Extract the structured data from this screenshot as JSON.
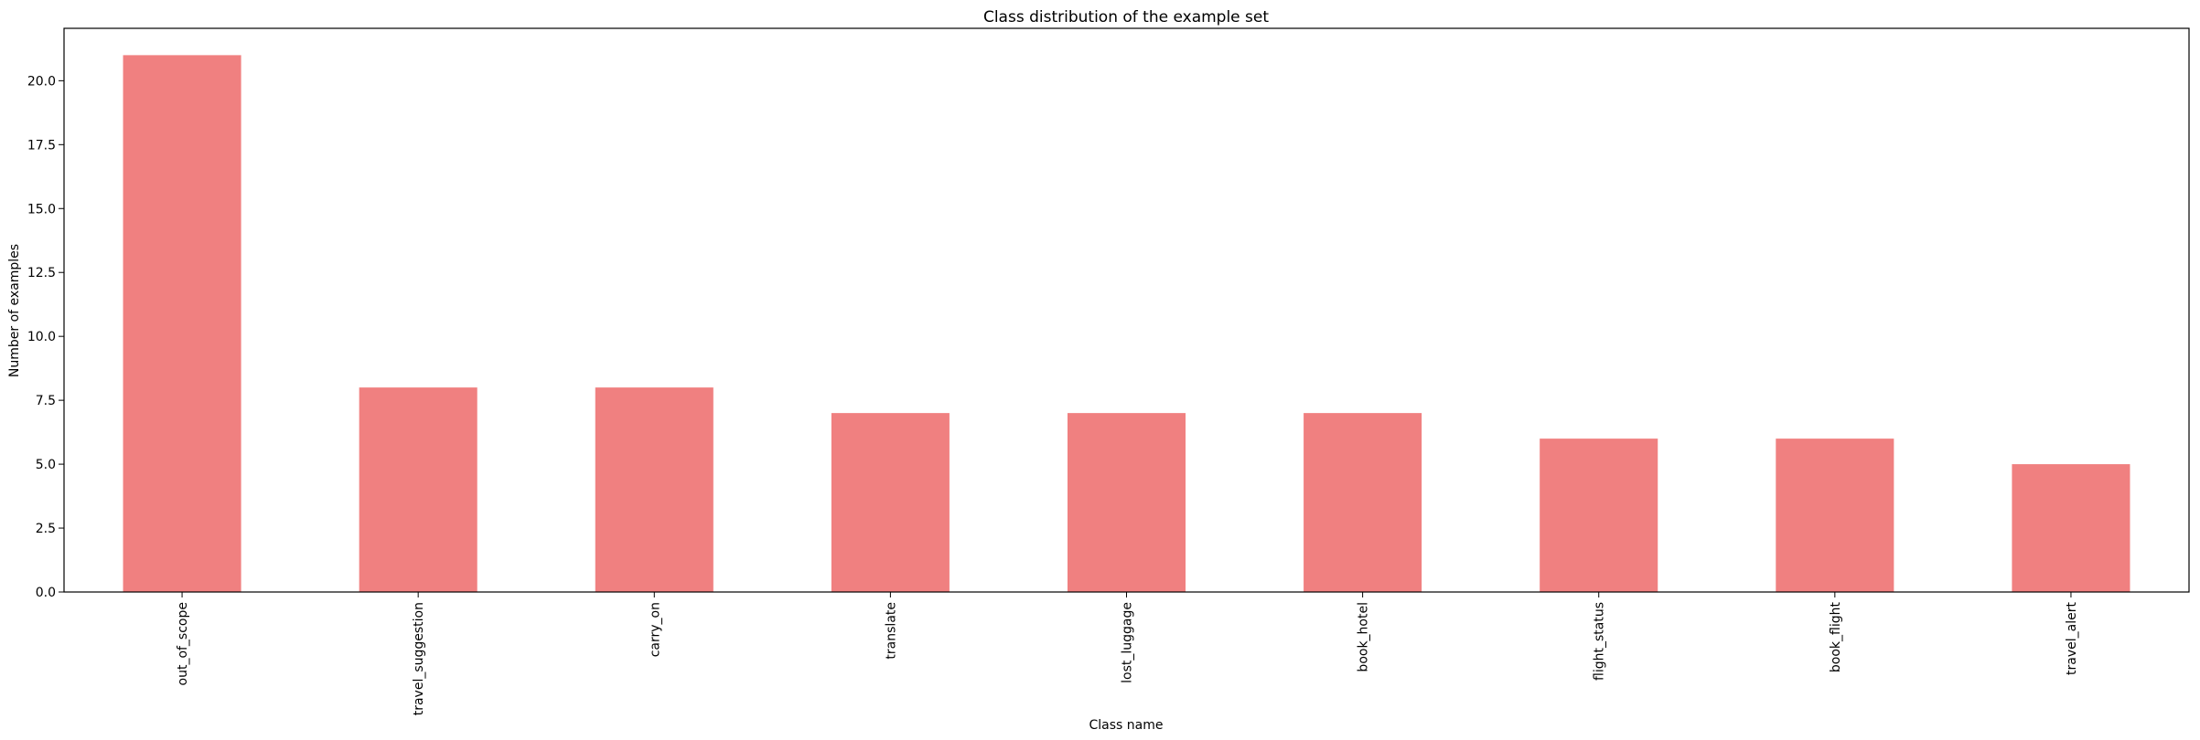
{
  "chart_data": {
    "type": "bar",
    "title": "Class distribution of the example set",
    "xlabel": "Class name",
    "ylabel": "Number of examples",
    "categories": [
      "out_of_scope",
      "travel_suggestion",
      "carry_on",
      "translate",
      "lost_luggage",
      "book_hotel",
      "flight_status",
      "book_flight",
      "travel_alert"
    ],
    "values": [
      21,
      8,
      8,
      7,
      7,
      7,
      6,
      6,
      5
    ],
    "ylim": [
      0,
      22.05
    ],
    "yticks": [
      0,
      2.5,
      5,
      7.5,
      10,
      12.5,
      15,
      17.5,
      20
    ],
    "ytick_labels": [
      "0.0",
      "2.5",
      "5.0",
      "7.5",
      "10.0",
      "12.5",
      "15.0",
      "17.5",
      "20.0"
    ],
    "bar_color": "#f08080",
    "grid": false,
    "legend": "none"
  }
}
